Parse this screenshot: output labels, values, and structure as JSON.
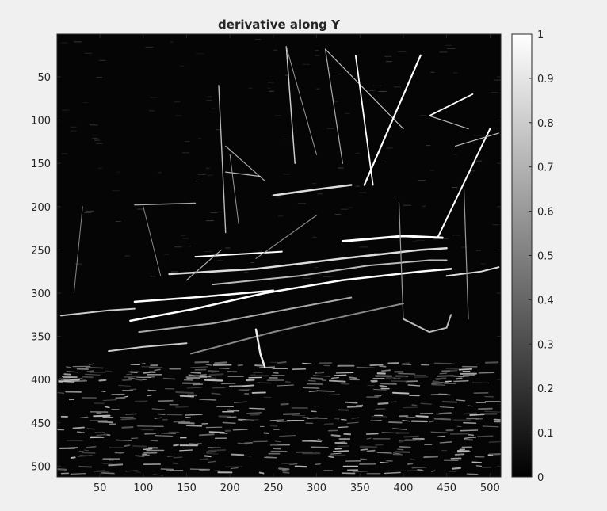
{
  "chart_data": {
    "type": "heatmap",
    "title": "derivative along Y",
    "xlabel": "",
    "ylabel": "",
    "colormap": "gray",
    "xlim": [
      0.5,
      512.5
    ],
    "ylim": [
      0.5,
      512.5
    ],
    "y_direction": "reverse",
    "x_ticks": [
      50,
      100,
      150,
      200,
      250,
      300,
      350,
      400,
      450,
      500
    ],
    "y_ticks": [
      50,
      100,
      150,
      200,
      250,
      300,
      350,
      400,
      450,
      500
    ],
    "x_tick_labels": [
      "50",
      "100",
      "150",
      "200",
      "250",
      "300",
      "350",
      "400",
      "450",
      "500"
    ],
    "y_tick_labels": [
      "50",
      "100",
      "150",
      "200",
      "250",
      "300",
      "350",
      "400",
      "450",
      "500"
    ],
    "colorbar": {
      "limits": [
        0,
        1
      ],
      "ticks": [
        0,
        0.1,
        0.2,
        0.3,
        0.4,
        0.5,
        0.6,
        0.7,
        0.8,
        0.9,
        1
      ],
      "tick_labels": [
        "0",
        "0.1",
        "0.2",
        "0.3",
        "0.4",
        "0.5",
        "0.6",
        "0.7",
        "0.8",
        "0.9",
        "1"
      ],
      "placement": "right"
    },
    "image_size": [
      512,
      512
    ],
    "grid": false
  },
  "colors": {
    "figure_background": "#f0f0f0",
    "axes_background": "#000000",
    "edge_bright": "#ffffff",
    "axis_line": "#262626",
    "text": "#262626"
  }
}
